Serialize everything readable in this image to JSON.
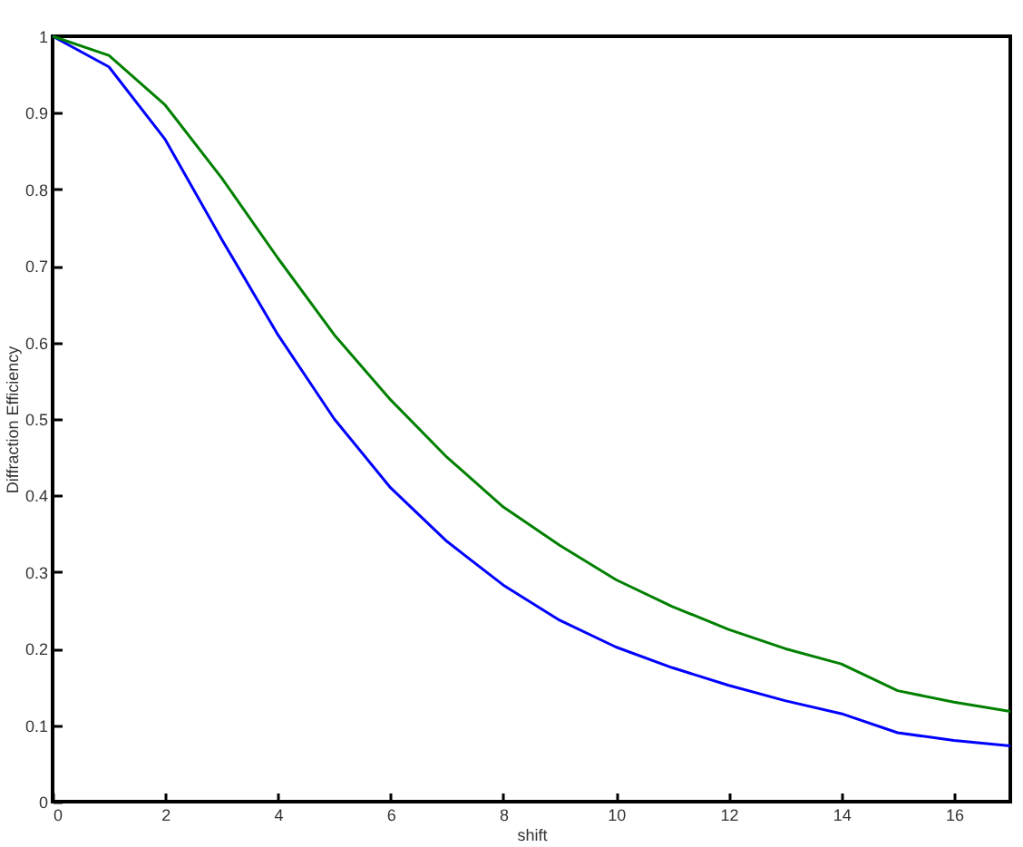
{
  "chart_data": {
    "type": "line",
    "xlabel": "shift",
    "ylabel": "Diffraction Efficiency",
    "x": [
      0,
      1,
      2,
      3,
      4,
      5,
      6,
      7,
      8,
      9,
      10,
      11,
      12,
      13,
      14,
      15,
      16,
      17
    ],
    "series": [
      {
        "color": "#0000ff",
        "values": [
          1,
          0.96,
          0.865,
          0.735,
          0.61,
          0.5,
          0.41,
          0.34,
          0.283,
          0.237,
          0.202,
          0.175,
          0.152,
          0.132,
          0.115,
          0.09,
          0.08,
          0.073
        ]
      },
      {
        "color": "#008000",
        "values": [
          1,
          0.975,
          0.91,
          0.815,
          0.71,
          0.61,
          0.525,
          0.45,
          0.385,
          0.335,
          0.29,
          0.255,
          0.225,
          0.2,
          0.18,
          0.145,
          0.13,
          0.118
        ]
      }
    ],
    "xlim": [
      0,
      17
    ],
    "xticks": [
      0,
      2,
      4,
      6,
      8,
      10,
      12,
      14,
      16
    ],
    "ylim": [
      0,
      1
    ],
    "yticks": [
      0,
      0.1,
      0.2,
      0.3,
      0.4,
      0.5,
      0.6,
      0.7,
      0.8,
      0.9,
      1
    ],
    "grid": false,
    "marker": "none",
    "line_style": "solid"
  }
}
